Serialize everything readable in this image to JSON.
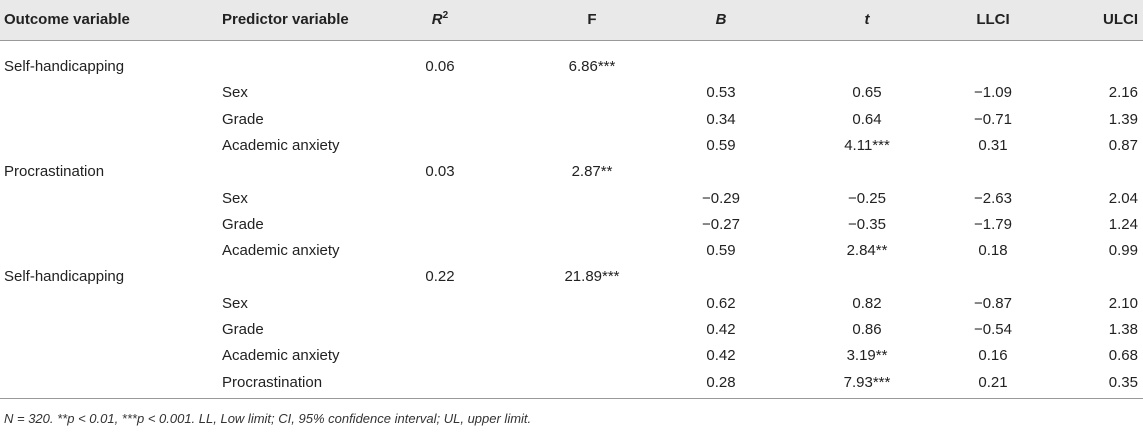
{
  "table": {
    "header": [
      "Outcome variable",
      "Predictor variable",
      {
        "text": "R",
        "sup": "2"
      },
      "F",
      "B",
      "t",
      "LLCI",
      "ULCI"
    ],
    "rows": [
      [
        "Self-handicapping",
        "",
        "0.06",
        "6.86***",
        "",
        "",
        "",
        ""
      ],
      [
        "",
        "Sex",
        "",
        "",
        "0.53",
        "0.65",
        "−1.09",
        "2.16"
      ],
      [
        "",
        "Grade",
        "",
        "",
        "0.34",
        "0.64",
        "−0.71",
        "1.39"
      ],
      [
        "",
        "Academic anxiety",
        "",
        "",
        "0.59",
        "4.11***",
        "0.31",
        "0.87"
      ],
      [
        "Procrastination",
        "",
        "0.03",
        "2.87**",
        "",
        "",
        "",
        ""
      ],
      [
        "",
        "Sex",
        "",
        "",
        "−0.29",
        "−0.25",
        "−2.63",
        "2.04"
      ],
      [
        "",
        "Grade",
        "",
        "",
        "−0.27",
        "−0.35",
        "−1.79",
        "1.24"
      ],
      [
        "",
        "Academic anxiety",
        "",
        "",
        "0.59",
        "2.84**",
        "0.18",
        "0.99"
      ],
      [
        "Self-handicapping",
        "",
        "0.22",
        "21.89***",
        "",
        "",
        "",
        ""
      ],
      [
        "",
        "Sex",
        "",
        "",
        "0.62",
        "0.82",
        "−0.87",
        "2.10"
      ],
      [
        "",
        "Grade",
        "",
        "",
        "0.42",
        "0.86",
        "−0.54",
        "1.38"
      ],
      [
        "",
        "Academic anxiety",
        "",
        "",
        "0.42",
        "3.19**",
        "0.16",
        "0.68"
      ],
      [
        "",
        "Procrastination",
        "",
        "",
        "0.28",
        "7.93***",
        "0.21",
        "0.35"
      ]
    ],
    "note": "N = 320. **p < 0.01, ***p < 0.001. LL, Low limit; CI, 95% confidence interval; UL, upper limit."
  }
}
